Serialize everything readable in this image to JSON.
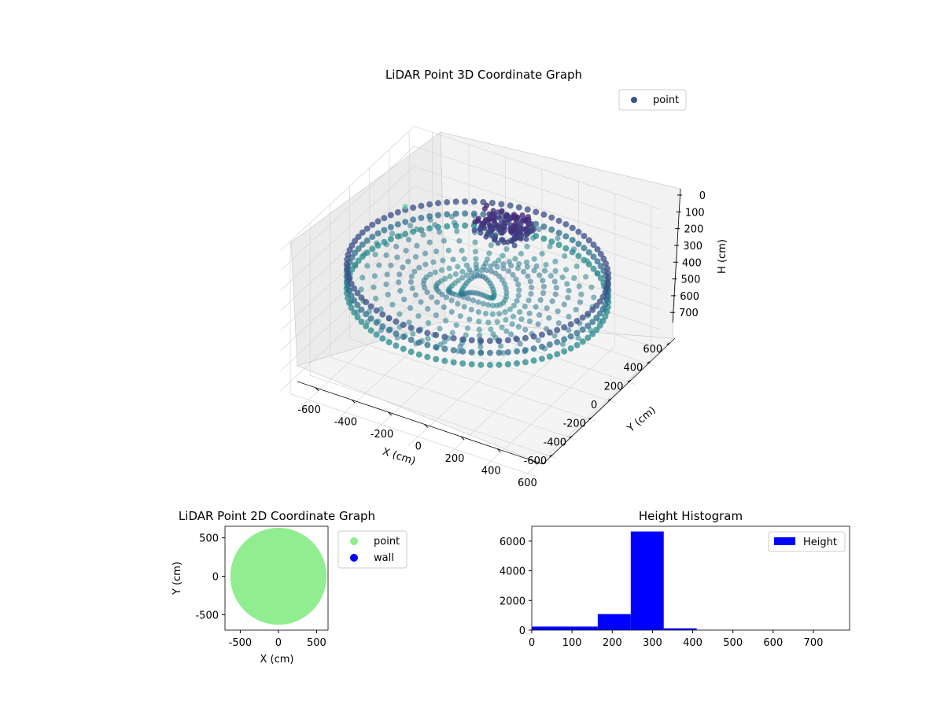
{
  "chart_data": [
    {
      "type": "scatter",
      "projection": "3d",
      "title": "LiDAR Point 3D Coordinate Graph",
      "xlabel": "X (cm)",
      "ylabel": "Y (cm)",
      "zlabel": "H (cm)",
      "xlim": [
        -700,
        650
      ],
      "ylim": [
        -700,
        650
      ],
      "zlim": [
        760,
        0
      ],
      "z_inverted": true,
      "xticks": [
        -600,
        -400,
        -200,
        0,
        200,
        400,
        600
      ],
      "yticks": [
        -600,
        -400,
        -200,
        0,
        200,
        400,
        600
      ],
      "zticks": [
        0,
        100,
        200,
        300,
        400,
        500,
        600,
        700
      ],
      "grid": true,
      "legend": {
        "position": "top-right",
        "entries": [
          "point"
        ]
      },
      "colormap": "viridis (color by height)",
      "series": [
        {
          "name": "point",
          "color": "#3b528b",
          "description_points": [
            {
              "shape": "ring",
              "radius": 630,
              "h": 300,
              "count_note": "dense outer wall ring"
            },
            {
              "shape": "cluster",
              "x": -60,
              "y": 380,
              "h": 140,
              "note": "dark purple low-height object near far wall"
            },
            {
              "shape": "outlier",
              "x": -700,
              "y": 560,
              "h": 360
            }
          ]
        }
      ]
    },
    {
      "type": "scatter",
      "title": "LiDAR Point 2D Coordinate Graph",
      "xlabel": "X (cm)",
      "ylabel": "Y (cm)",
      "xlim": [
        -700,
        650
      ],
      "ylim": [
        -700,
        650
      ],
      "xticks": [
        -500,
        0,
        500
      ],
      "yticks": [
        -500,
        0,
        500
      ],
      "legend": {
        "position": "outside-right",
        "entries": [
          "point",
          "wall"
        ]
      },
      "series": [
        {
          "name": "point",
          "color": "#90ee90",
          "shape": "filled disk",
          "center": [
            0,
            0
          ],
          "radius": 630
        },
        {
          "name": "wall",
          "color": "#0000ff",
          "values": []
        }
      ]
    },
    {
      "type": "bar",
      "subtype": "histogram",
      "title": "Height Histogram",
      "xlim": [
        0,
        790
      ],
      "ylim": [
        0,
        7000
      ],
      "xticks": [
        0,
        100,
        200,
        300,
        400,
        500,
        600,
        700
      ],
      "yticks": [
        0,
        2000,
        4000,
        6000
      ],
      "legend": {
        "position": "top-right",
        "entries": [
          "Height"
        ]
      },
      "series": [
        {
          "name": "Height",
          "color": "#0000ff",
          "bins": [
            {
              "x0": 0,
              "x1": 82,
              "count": 240
            },
            {
              "x0": 82,
              "x1": 164,
              "count": 240
            },
            {
              "x0": 164,
              "x1": 246,
              "count": 1080
            },
            {
              "x0": 246,
              "x1": 328,
              "count": 6650
            },
            {
              "x0": 328,
              "x1": 410,
              "count": 120
            },
            {
              "x0": 410,
              "x1": 492,
              "count": 10
            },
            {
              "x0": 492,
              "x1": 574,
              "count": 8
            },
            {
              "x0": 574,
              "x1": 656,
              "count": 5
            },
            {
              "x0": 656,
              "x1": 738,
              "count": 3
            },
            {
              "x0": 738,
              "x1": 790,
              "count": 2
            }
          ]
        }
      ]
    }
  ]
}
